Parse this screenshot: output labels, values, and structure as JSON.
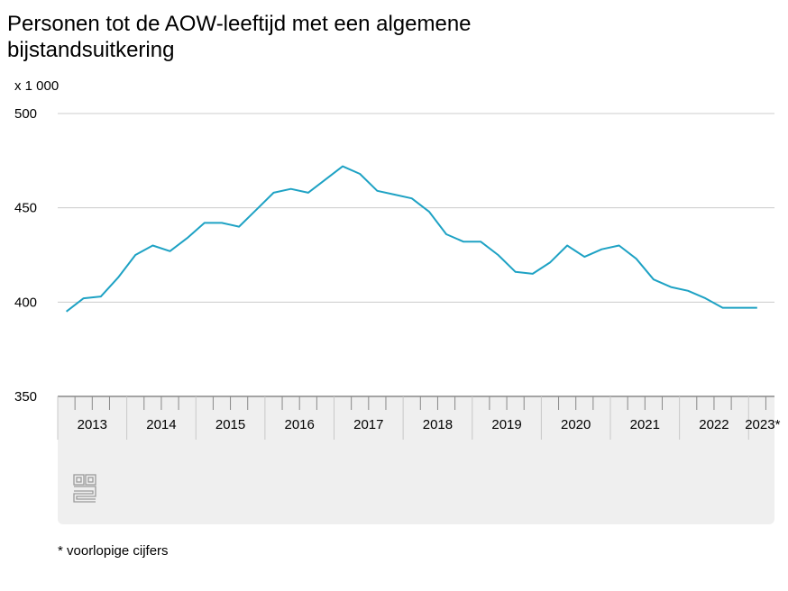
{
  "page": {
    "title": "Personen tot de AOW-leeftijd met een algemene bijstandsuitkering",
    "footnote": "* voorlopige cijfers"
  },
  "logo": {
    "icon": "cbs-logo-icon",
    "text": "cbs"
  },
  "colors": {
    "line": "#1ea2c4",
    "grid": "#cccccc",
    "axisBand": "#efefef",
    "axis": "#888888"
  },
  "chart_data": {
    "type": "line",
    "title": "Personen tot de AOW-leeftijd met een algemene bijstandsuitkering",
    "ylabel": "x 1 000",
    "xlabel": "",
    "ylim": [
      350,
      500
    ],
    "yticks": [
      500,
      450,
      400,
      350
    ],
    "grid": true,
    "years": [
      "2013",
      "2014",
      "2015",
      "2016",
      "2017",
      "2018",
      "2019",
      "2020",
      "2021",
      "2022",
      "2023*"
    ],
    "x": [
      "2013 Q1",
      "2013 Q2",
      "2013 Q3",
      "2013 Q4",
      "2014 Q1",
      "2014 Q2",
      "2014 Q3",
      "2014 Q4",
      "2015 Q1",
      "2015 Q2",
      "2015 Q3",
      "2015 Q4",
      "2016 Q1",
      "2016 Q2",
      "2016 Q3",
      "2016 Q4",
      "2017 Q1",
      "2017 Q2",
      "2017 Q3",
      "2017 Q4",
      "2018 Q1",
      "2018 Q2",
      "2018 Q3",
      "2018 Q4",
      "2019 Q1",
      "2019 Q2",
      "2019 Q3",
      "2019 Q4",
      "2020 Q1",
      "2020 Q2",
      "2020 Q3",
      "2020 Q4",
      "2021 Q1",
      "2021 Q2",
      "2021 Q3",
      "2021 Q4",
      "2022 Q1",
      "2022 Q2",
      "2022 Q3",
      "2022 Q4",
      "2023 Q1"
    ],
    "series": [
      {
        "name": "Personen met algemene bijstandsuitkering (x 1 000)",
        "values": [
          395,
          402,
          403,
          413,
          425,
          430,
          427,
          434,
          442,
          442,
          440,
          449,
          458,
          460,
          458,
          465,
          472,
          468,
          459,
          457,
          455,
          448,
          436,
          432,
          432,
          425,
          416,
          415,
          421,
          430,
          424,
          428,
          430,
          423,
          412,
          408,
          406,
          402,
          397,
          397,
          397
        ]
      }
    ]
  }
}
